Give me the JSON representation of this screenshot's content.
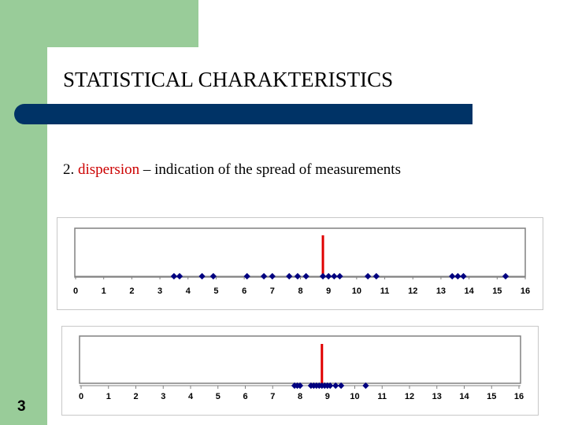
{
  "slide": {
    "title": "STATISTICAL CHARAKTERISTICS",
    "subtitle_prefix": "2. ",
    "subtitle_term": "dispersion",
    "subtitle_rest": " – indication of the spread of measurements",
    "page_number": "3",
    "colors": {
      "green": "#99cc99",
      "title_bar": "#003366",
      "term": "#cc0000",
      "points": "#000080",
      "marker": "#e00000"
    }
  },
  "chart_data": [
    {
      "type": "scatter",
      "xlim": [
        0,
        16
      ],
      "x_ticks": [
        0,
        1,
        2,
        3,
        4,
        5,
        6,
        7,
        8,
        9,
        10,
        11,
        12,
        13,
        14,
        15,
        16
      ],
      "points": [
        3.5,
        3.7,
        4.5,
        4.9,
        6.1,
        6.7,
        7.0,
        7.6,
        7.9,
        8.2,
        8.8,
        9.0,
        9.2,
        9.4,
        10.4,
        10.7,
        13.4,
        13.6,
        13.8,
        15.3
      ],
      "marker_x": 8.8,
      "grid": false
    },
    {
      "type": "scatter",
      "xlim": [
        0,
        16
      ],
      "x_ticks": [
        0,
        1,
        2,
        3,
        4,
        5,
        6,
        7,
        8,
        9,
        10,
        11,
        12,
        13,
        14,
        15,
        16
      ],
      "points": [
        7.8,
        7.9,
        8.0,
        8.4,
        8.5,
        8.6,
        8.7,
        8.8,
        8.9,
        9.0,
        9.1,
        9.3,
        9.5,
        10.4
      ],
      "marker_x": 8.8,
      "grid": false
    }
  ]
}
